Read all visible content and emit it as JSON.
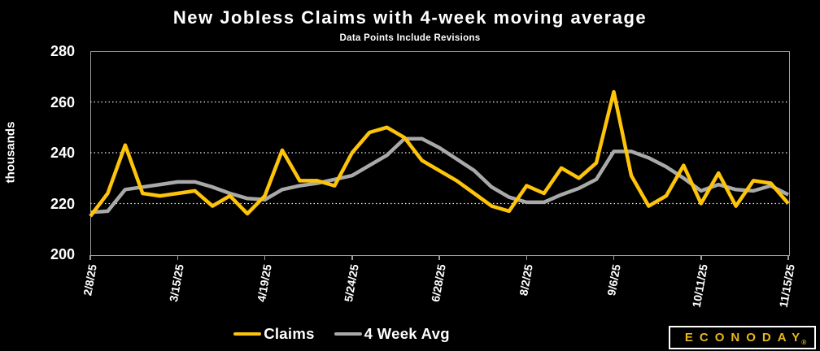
{
  "chart_data": {
    "type": "line",
    "title": "New Jobless Claims with 4-week moving average",
    "subtitle": "Data Points Include Revisions",
    "ylabel": "thousands",
    "ylim": [
      200,
      280
    ],
    "yticks": [
      280,
      260,
      240,
      220,
      200
    ],
    "grid_values": [
      260,
      240,
      220
    ],
    "grid_style": "dotted",
    "legend_position": "bottom-center",
    "x": [
      "2/8/25",
      "2/15/25",
      "2/22/25",
      "3/1/25",
      "3/8/25",
      "3/15/25",
      "3/22/25",
      "3/29/25",
      "4/5/25",
      "4/12/25",
      "4/19/25",
      "4/26/25",
      "5/3/25",
      "5/10/25",
      "5/17/25",
      "5/24/25",
      "5/31/25",
      "6/7/25",
      "6/14/25",
      "6/21/25",
      "6/28/25",
      "7/5/25",
      "7/12/25",
      "7/19/25",
      "7/26/25",
      "8/2/25",
      "8/9/25",
      "8/16/25",
      "8/23/25",
      "8/30/25",
      "9/6/25",
      "9/13/25",
      "9/20/25",
      "9/27/25",
      "10/4/25",
      "10/11/25",
      "10/18/25",
      "10/25/25",
      "11/1/25",
      "11/8/25",
      "11/15/25"
    ],
    "x_tick_labels": [
      "2/8/25",
      "3/15/25",
      "4/19/25",
      "5/24/25",
      "6/28/25",
      "8/2/25",
      "9/6/25",
      "10/11/25",
      "11/15/25"
    ],
    "x_tick_indices": [
      0,
      5,
      10,
      15,
      20,
      25,
      30,
      35,
      40
    ],
    "series": [
      {
        "name": "4 Week Avg",
        "color": "#a9a9a9",
        "values": [
          216.5,
          217,
          225.5,
          226.5,
          227.5,
          228.5,
          228.5,
          226.5,
          224,
          222,
          221.5,
          225.5,
          227,
          228,
          229.5,
          231,
          235,
          239,
          245.5,
          245.5,
          242,
          237.5,
          233,
          226.5,
          222.5,
          220.5,
          220.5,
          223.5,
          226,
          229.5,
          240.5,
          240.5,
          238,
          234.5,
          230,
          225,
          227.5,
          225.5,
          225,
          227,
          223.5
        ]
      },
      {
        "name": "Claims",
        "color": "#fdc40a",
        "values": [
          215,
          224,
          243,
          224,
          223,
          224,
          225,
          219,
          223,
          216,
          223,
          241,
          229,
          229,
          227,
          240,
          248,
          250,
          246,
          237,
          233,
          229,
          224,
          219,
          217,
          227,
          224,
          234,
          230,
          236,
          264,
          231,
          219,
          223,
          235,
          220,
          232,
          219,
          229,
          228,
          220
        ]
      }
    ]
  },
  "legend": {
    "items": [
      {
        "label": "Claims",
        "color": "#fdc40a"
      },
      {
        "label": "4 Week Avg",
        "color": "#a9a9a9"
      }
    ]
  },
  "branding": {
    "logo_text": "ECONODAY",
    "registered_mark": "®"
  },
  "colors": {
    "background": "#000000",
    "text": "#ffffff",
    "plot_border": "#9e9e9e",
    "gridline": "#ececec",
    "claims": "#fdc40a",
    "avg": "#a9a9a9",
    "logo_yellow": "#e7b71f"
  }
}
